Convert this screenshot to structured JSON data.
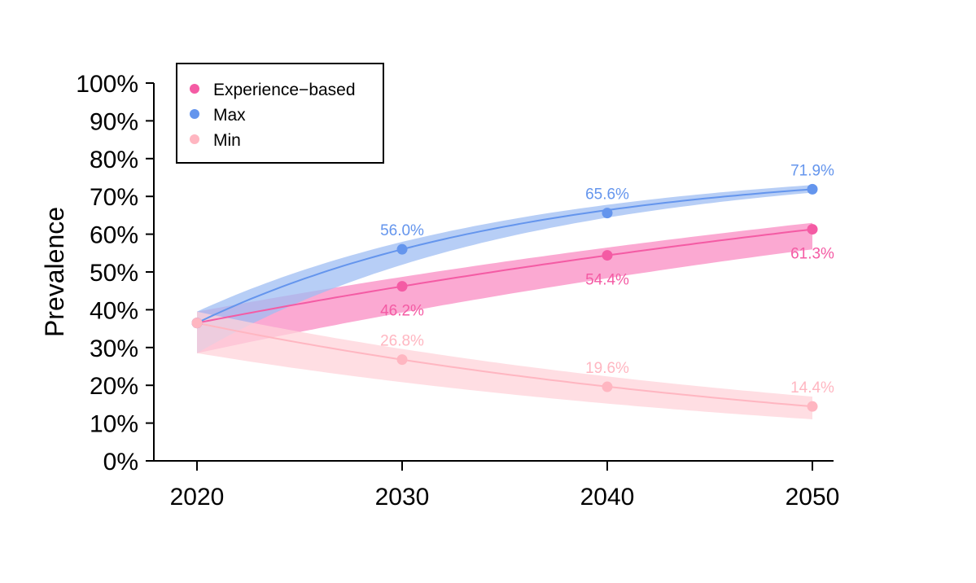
{
  "chart_data": {
    "type": "line",
    "title": "",
    "xlabel": "",
    "ylabel": "Prevalence",
    "x": [
      2020,
      2030,
      2040,
      2050
    ],
    "xlim": [
      2018,
      2051
    ],
    "ylim": [
      0,
      100
    ],
    "y_ticks": [
      "0%",
      "10%",
      "20%",
      "30%",
      "40%",
      "50%",
      "60%",
      "70%",
      "80%",
      "90%",
      "100%"
    ],
    "x_ticks": [
      "2020",
      "2030",
      "2040",
      "2050"
    ],
    "grid": false,
    "legend": "top-left",
    "start_value": 36.5,
    "band_start": [
      28.5,
      39.5
    ],
    "series": [
      {
        "name": "Experience−based",
        "color": "#f45ba4",
        "band_color": "#f98cc3",
        "values": [
          36.5,
          46.2,
          54.4,
          61.3
        ],
        "labels": [
          "",
          "46.2%",
          "54.4%",
          "61.3%"
        ],
        "band_end": [
          56,
          63
        ]
      },
      {
        "name": "Max",
        "color": "#6495ed",
        "band_color": "#9fbdf3",
        "values": [
          36.5,
          56.0,
          65.6,
          71.9
        ],
        "labels": [
          "",
          "56.0%",
          "65.6%",
          "71.9%"
        ],
        "band_end": [
          71,
          73
        ]
      },
      {
        "name": "Min",
        "color": "#ffb6c1",
        "band_color": "#ffd3da",
        "values": [
          36.5,
          26.8,
          19.6,
          14.4
        ],
        "labels": [
          "",
          "26.8%",
          "19.6%",
          "14.4%"
        ],
        "band_end": [
          11,
          17
        ]
      }
    ]
  }
}
